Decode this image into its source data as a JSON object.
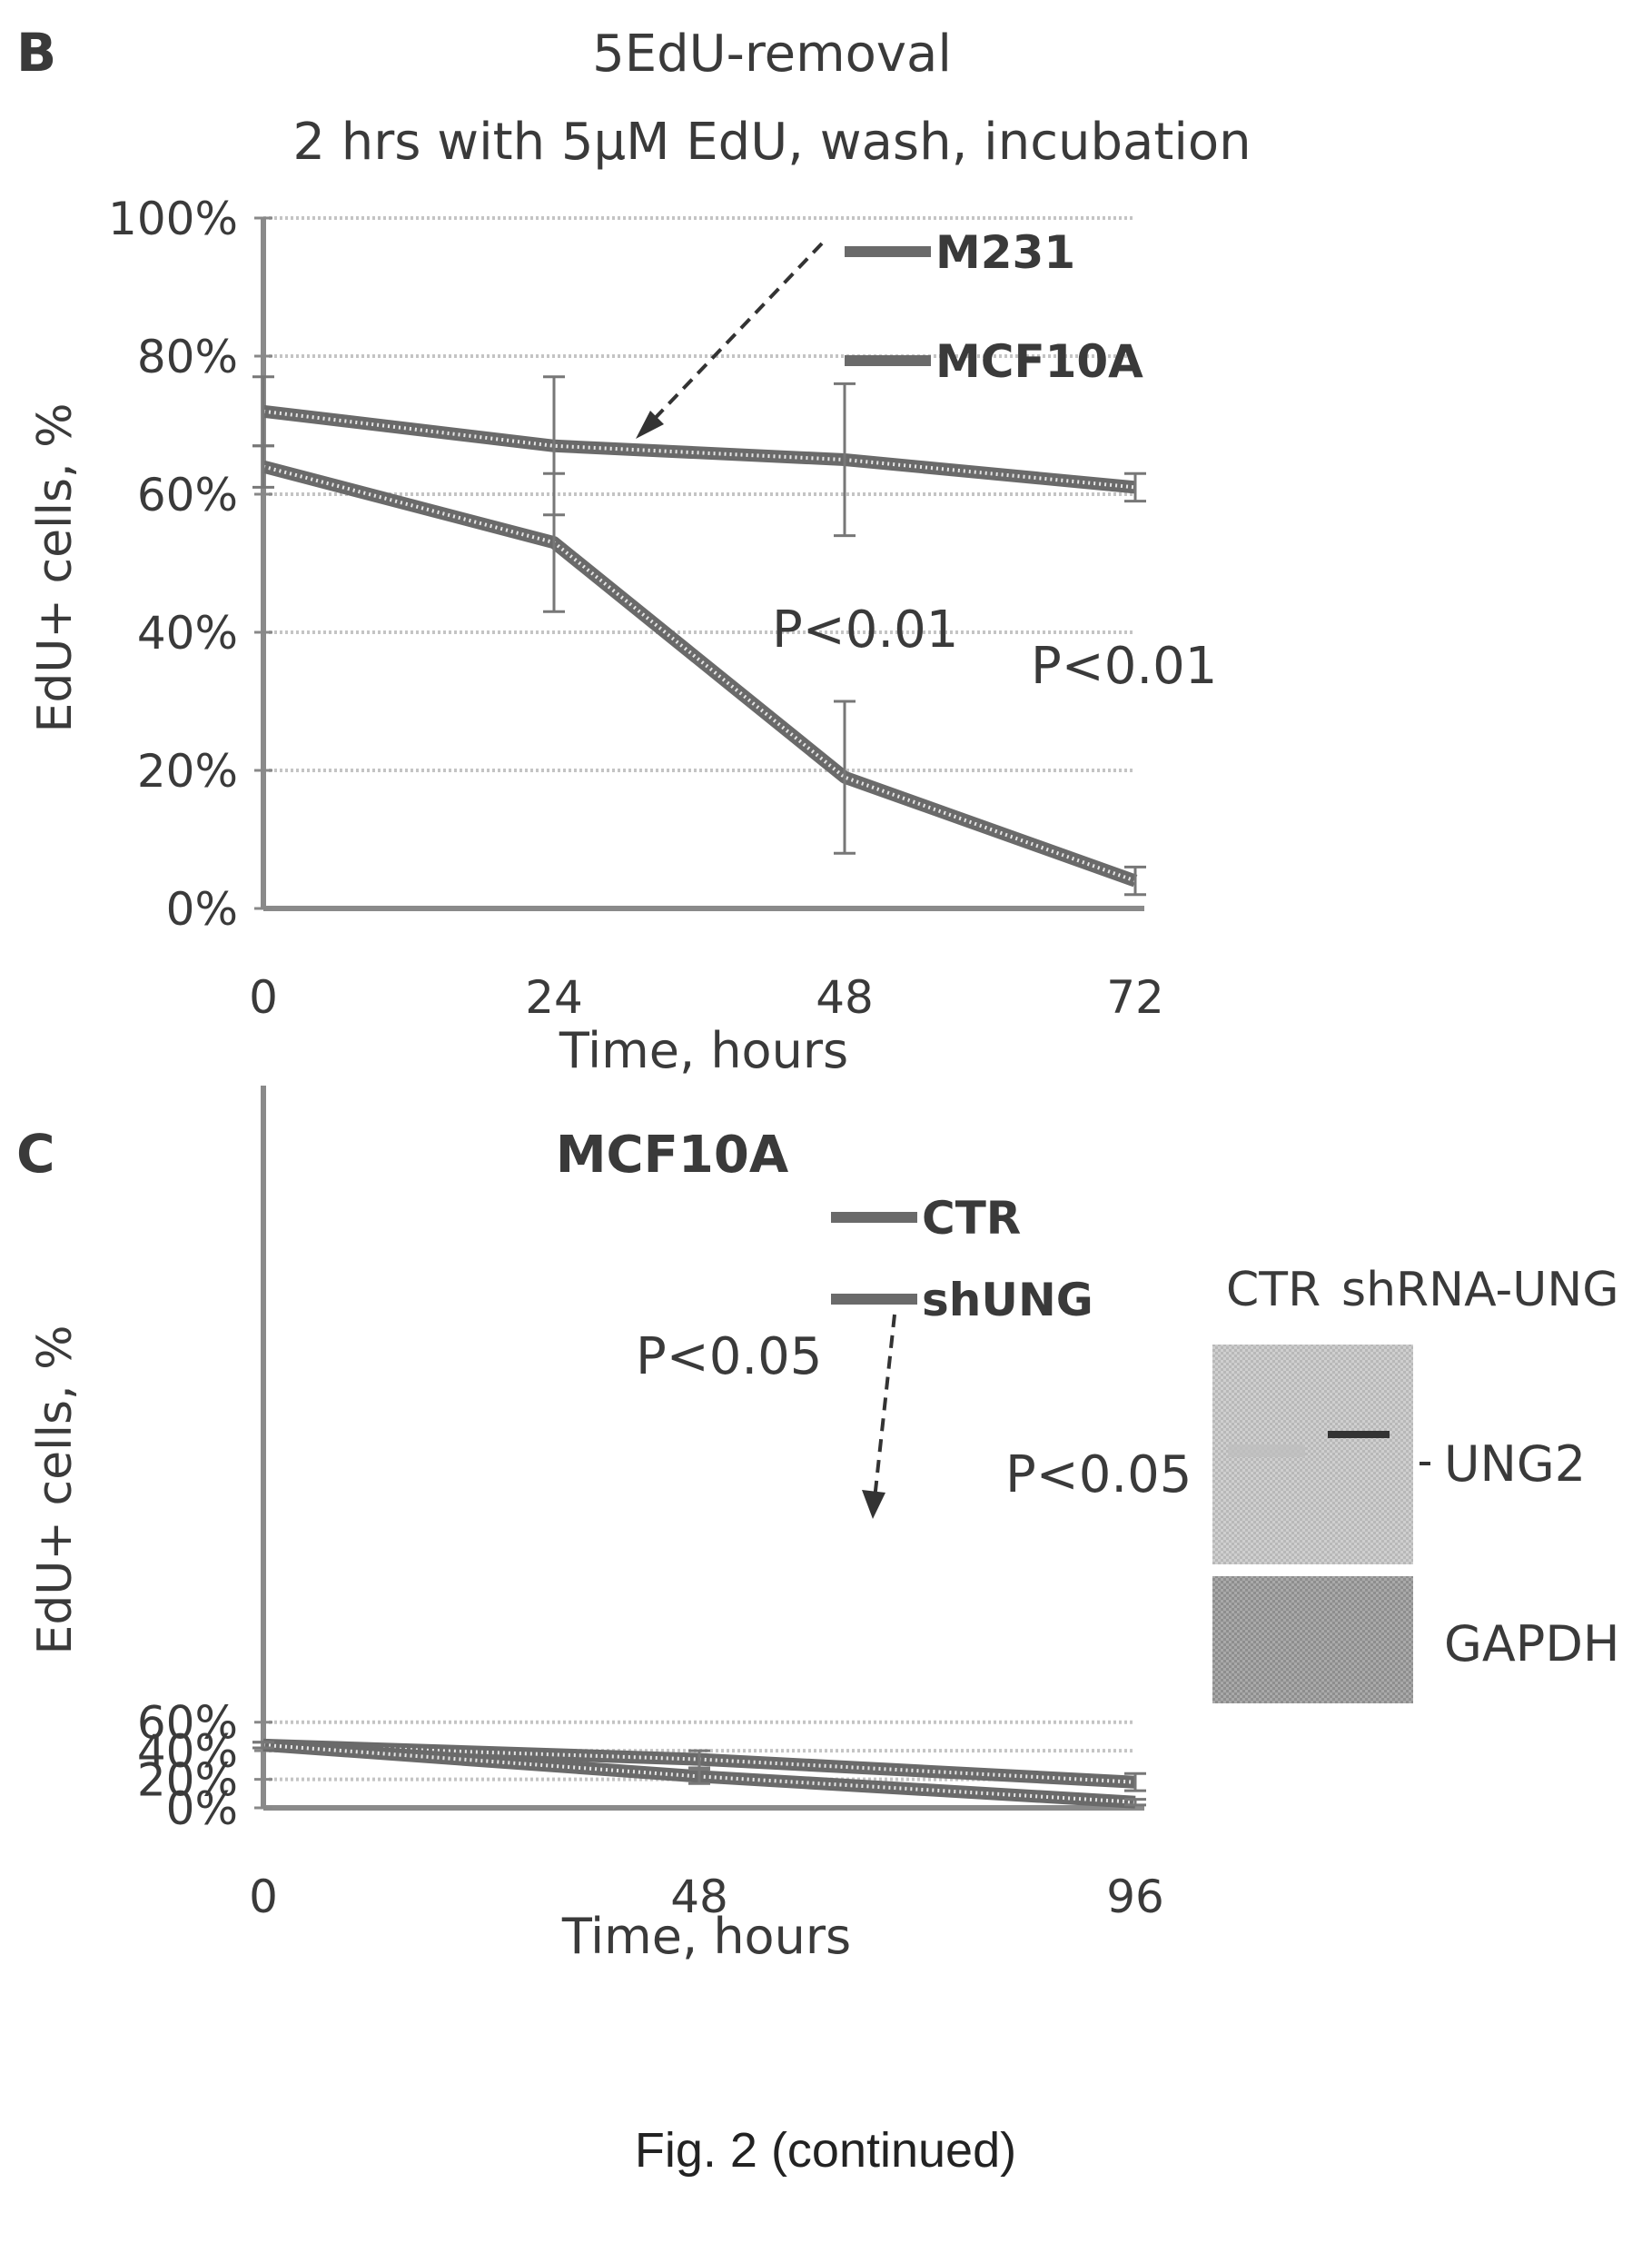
{
  "figure_caption": "Fig. 2 (continued)",
  "colors": {
    "line": "#6a6a6a",
    "grid": "#c4c4c4",
    "text": "#3a3a3a",
    "blot_bg": "#c9c9c9",
    "band": "#3a3a3a"
  },
  "chart_data": [
    {
      "panel_label": "B",
      "type": "line",
      "title": "5EdU-removal",
      "subtitle": "2 hrs with 5μM EdU, wash, incubation",
      "xlabel": "Time, hours",
      "ylabel": "EdU+ cells, %",
      "x": [
        0,
        24,
        48,
        72
      ],
      "x_ticks": [
        "0",
        "24",
        "48",
        "72"
      ],
      "ylim": [
        0,
        100
      ],
      "y_ticks": [
        0,
        20,
        40,
        60,
        80,
        100
      ],
      "y_tick_labels": [
        "0%",
        "20%",
        "40%",
        "60%",
        "80%",
        "100%"
      ],
      "grid": true,
      "legend_position": "top-right",
      "series": [
        {
          "name": "M231",
          "values": [
            72,
            67,
            65,
            61
          ],
          "errors": [
            5,
            10,
            11,
            2
          ]
        },
        {
          "name": "MCF10A",
          "values": [
            64,
            53,
            19,
            4
          ],
          "errors": [
            3,
            10,
            11,
            2
          ]
        }
      ],
      "annotations": [
        "P<0.01",
        "P<0.01"
      ]
    },
    {
      "panel_label": "C",
      "type": "line",
      "title": "MCF10A",
      "xlabel": "Time, hours",
      "ylabel": "EdU+ cells, %",
      "x": [
        0,
        48,
        96
      ],
      "x_ticks": [
        "0",
        "48",
        "96"
      ],
      "ylim": [
        0,
        70
      ],
      "y_ticks": [
        0,
        20,
        40,
        60
      ],
      "y_tick_labels": [
        "0%",
        "20%",
        "40%",
        "60%"
      ],
      "grid": true,
      "legend_position": "top-right",
      "series": [
        {
          "name": "CTR",
          "values": [
            44,
            34,
            18
          ],
          "errors": [
            2,
            6,
            6
          ]
        },
        {
          "name": "shUNG",
          "values": [
            44,
            22,
            4
          ],
          "errors": [
            2,
            5,
            2
          ]
        }
      ],
      "annotations": [
        "P<0.05",
        "P<0.05"
      ]
    }
  ],
  "blot": {
    "lane_labels": [
      "CTR",
      "shRNA-UNG"
    ],
    "band_labels": [
      "UNG2",
      "GAPDH"
    ]
  }
}
